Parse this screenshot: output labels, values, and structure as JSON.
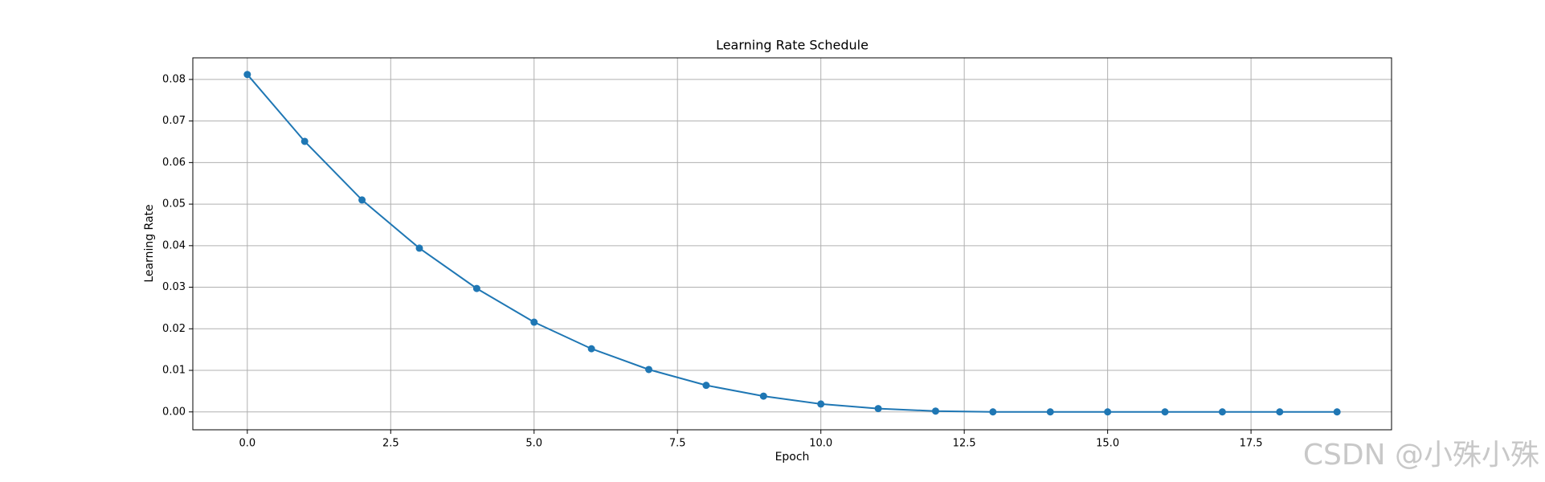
{
  "chart_data": {
    "type": "line",
    "title": "Learning Rate Schedule",
    "xlabel": "Epoch",
    "ylabel": "Learning Rate",
    "x": [
      0,
      1,
      2,
      3,
      4,
      5,
      6,
      7,
      8,
      9,
      10,
      11,
      12,
      13,
      14,
      15,
      16,
      17,
      18,
      19
    ],
    "series": [
      {
        "name": "Learning Rate",
        "color": "#1f77b4",
        "values": [
          0.0812,
          0.0651,
          0.051,
          0.0394,
          0.0297,
          0.0216,
          0.0152,
          0.0102,
          0.0064,
          0.0038,
          0.0019,
          0.0008,
          0.0002,
          0,
          0,
          0,
          0,
          0,
          0,
          0
        ]
      }
    ],
    "xlim": [
      -0.95,
      19.95
    ],
    "xticks": [
      {
        "value": 0,
        "label": "0.0"
      },
      {
        "value": 2.5,
        "label": "2.5"
      },
      {
        "value": 5,
        "label": "5.0"
      },
      {
        "value": 7.5,
        "label": "7.5"
      },
      {
        "value": 10,
        "label": "10.0"
      },
      {
        "value": 12.5,
        "label": "12.5"
      },
      {
        "value": 15,
        "label": "15.0"
      },
      {
        "value": 17.5,
        "label": "17.5"
      }
    ],
    "ylim": [
      -0.0043,
      0.0852
    ],
    "yticks": [
      {
        "value": 0,
        "label": "0.00"
      },
      {
        "value": 0.01,
        "label": "0.01"
      },
      {
        "value": 0.02,
        "label": "0.02"
      },
      {
        "value": 0.03,
        "label": "0.03"
      },
      {
        "value": 0.04,
        "label": "0.04"
      },
      {
        "value": 0.05,
        "label": "0.05"
      },
      {
        "value": 0.06,
        "label": "0.06"
      },
      {
        "value": 0.07,
        "label": "0.07"
      },
      {
        "value": 0.08,
        "label": "0.08"
      }
    ],
    "grid": true
  },
  "watermark": "CSDN @小殊小殊"
}
